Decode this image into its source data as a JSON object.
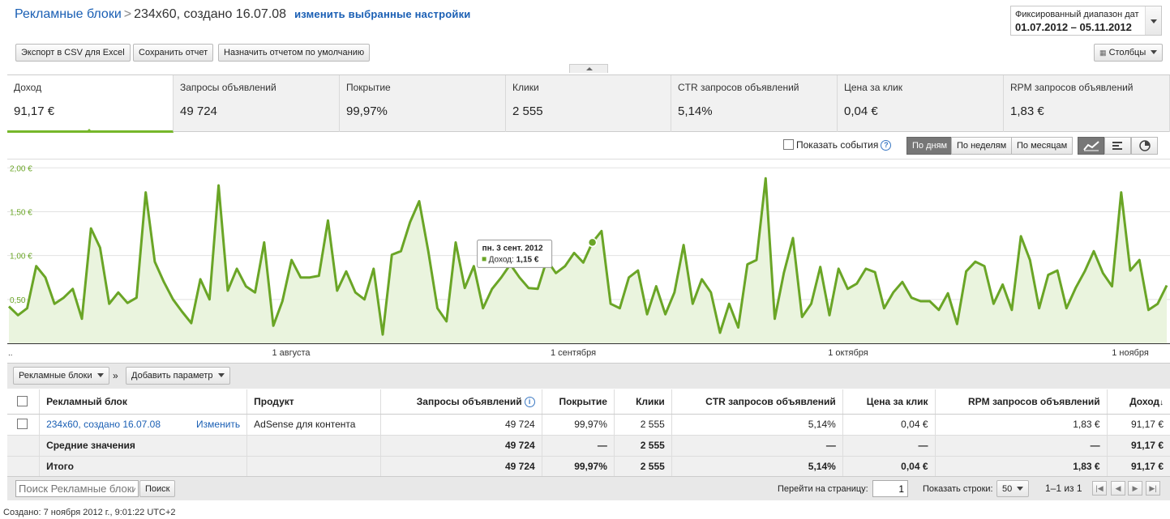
{
  "header": {
    "crumb_root": "Рекламные блоки",
    "crumb_sep": ">",
    "crumb_current": "234x60, создано 16.07.08",
    "change_settings": "изменить выбранные настройки",
    "date_label": "Фиксированный диапазон дат",
    "date_value": "01.07.2012 – 05.11.2012"
  },
  "toolbar": {
    "export": "Экспорт в CSV для Excel",
    "save": "Сохранить отчет",
    "default": "Назначить отчетом по умолчанию",
    "columns": "Столбцы"
  },
  "metrics": [
    {
      "label": "Доход",
      "value": "91,17 €"
    },
    {
      "label": "Запросы объявлений",
      "value": "49 724"
    },
    {
      "label": "Покрытие",
      "value": "99,97%"
    },
    {
      "label": "Клики",
      "value": "2 555"
    },
    {
      "label": "CTR запросов объявлений",
      "value": "5,14%"
    },
    {
      "label": "Цена за клик",
      "value": "0,04 €"
    },
    {
      "label": "RPM запросов объявлений",
      "value": "1,83 €"
    }
  ],
  "chart_controls": {
    "show_events": "Показать события",
    "by_day": "По дням",
    "by_week": "По неделям",
    "by_month": "По месяцам"
  },
  "chart_data": {
    "type": "area",
    "series": [
      {
        "name": "Доход",
        "color": "#6aa526"
      }
    ],
    "y_ticks": [
      "2,00 €",
      "1,50 €",
      "1,00 €",
      "0,50 €"
    ],
    "ylim": [
      0,
      2.0
    ],
    "x_labels": [
      "1 августа",
      "1 сентября",
      "1 октября",
      "1 ноября"
    ],
    "x_start": "..",
    "values": [
      0.42,
      0.32,
      0.4,
      0.88,
      0.75,
      0.45,
      0.52,
      0.62,
      0.28,
      1.31,
      1.09,
      0.45,
      0.58,
      0.46,
      0.52,
      1.72,
      0.93,
      0.7,
      0.5,
      0.36,
      0.23,
      0.73,
      0.5,
      1.8,
      0.6,
      0.85,
      0.65,
      0.58,
      1.15,
      0.2,
      0.48,
      0.95,
      0.75,
      0.75,
      0.77,
      1.4,
      0.6,
      0.82,
      0.58,
      0.5,
      0.85,
      0.1,
      1.01,
      1.05,
      1.38,
      1.62,
      1.05,
      0.4,
      0.25,
      1.15,
      0.63,
      0.88,
      0.4,
      0.62,
      0.75,
      0.9,
      0.75,
      0.63,
      0.62,
      0.95,
      0.8,
      0.88,
      1.03,
      0.92,
      1.15,
      1.28,
      0.45,
      0.4,
      0.75,
      0.83,
      0.33,
      0.65,
      0.33,
      0.58,
      1.12,
      0.45,
      0.73,
      0.58,
      0.12,
      0.45,
      0.18,
      0.9,
      0.95,
      1.88,
      0.28,
      0.8,
      1.2,
      0.3,
      0.45,
      0.87,
      0.32,
      0.85,
      0.62,
      0.68,
      0.85,
      0.81,
      0.4,
      0.58,
      0.7,
      0.52,
      0.48,
      0.48,
      0.38,
      0.57,
      0.22,
      0.82,
      0.93,
      0.88,
      0.45,
      0.67,
      0.38,
      1.22,
      0.95,
      0.4,
      0.78,
      0.83,
      0.4,
      0.63,
      0.82,
      1.05,
      0.8,
      0.65,
      1.72,
      0.83,
      0.95,
      0.38,
      0.45,
      0.66
    ],
    "tooltip": {
      "date": "пн. 3 сент. 2012",
      "series_label": "Доход:",
      "value": "1,15 €",
      "index": 64
    }
  },
  "dimensions": {
    "primary": "Рекламные блоки",
    "add": "Добавить параметр",
    "arrow": "»"
  },
  "table": {
    "headers": [
      "Рекламный блок",
      "Продукт",
      "Запросы объявлений",
      "Покрытие",
      "Клики",
      "CTR запросов объявлений",
      "Цена за клик",
      "RPM запросов объявлений",
      "Доход"
    ],
    "row": {
      "name": "234x60, создано 16.07.08",
      "edit": "Изменить",
      "product": "AdSense для контента",
      "requests": "49 724",
      "coverage": "99,97%",
      "clicks": "2 555",
      "ctr": "5,14%",
      "cpc": "0,04 €",
      "rpm": "1,83 €",
      "revenue": "91,17 €"
    },
    "avg": {
      "label": "Средние значения",
      "requests": "49 724",
      "coverage": "—",
      "clicks": "2 555",
      "ctr": "—",
      "cpc": "—",
      "rpm": "—",
      "revenue": "91,17 €"
    },
    "total": {
      "label": "Итого",
      "requests": "49 724",
      "coverage": "99,97%",
      "clicks": "2 555",
      "ctr": "5,14%",
      "cpc": "0,04 €",
      "rpm": "1,83 €",
      "revenue": "91,17 €"
    }
  },
  "footer": {
    "search_placeholder": "Поиск Рекламные блоки",
    "search_btn": "Поиск",
    "goto_label": "Перейти на страницу:",
    "goto_value": "1",
    "rows_label": "Показать строки:",
    "rows_value": "50",
    "range": "1–1 из 1",
    "created": "Создано: 7 ноября 2012 г., 9:01:22 UTC+2"
  }
}
